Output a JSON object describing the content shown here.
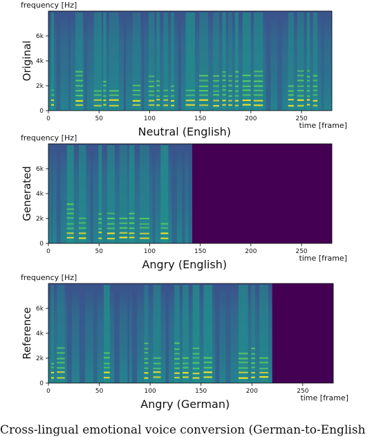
{
  "figure": {
    "caption": "Cross-lingual emotional voice conversion (German-to-English",
    "panels": [
      {
        "ylabel": "Original",
        "xlabel": "Neutral (English)",
        "freq_axis_label": "frequency [Hz]",
        "time_axis_label": "time [frame]",
        "y_ticks": [
          "0",
          "2k",
          "4k",
          "6k"
        ],
        "x_ticks": [
          "0",
          "50",
          "100",
          "150",
          "200",
          "250"
        ],
        "signal_end_frame": 280
      },
      {
        "ylabel": "Generated",
        "xlabel": "Angry (English)",
        "freq_axis_label": "frequency [Hz]",
        "time_axis_label": "time [frame]",
        "y_ticks": [
          "0",
          "2k",
          "4k",
          "6k"
        ],
        "x_ticks": [
          "0",
          "50",
          "100",
          "150",
          "200",
          "250"
        ],
        "signal_end_frame": 142
      },
      {
        "ylabel": "Reference",
        "xlabel": "Angry (German)",
        "freq_axis_label": "frequency [Hz]",
        "time_axis_label": "time [frame]",
        "y_ticks": [
          "0",
          "2k",
          "4k",
          "6k"
        ],
        "x_ticks": [
          "0",
          "50",
          "100",
          "150",
          "200",
          "250"
        ],
        "signal_end_frame": 220
      }
    ],
    "colors": {
      "background": "#440154",
      "low": "#3b528b",
      "mid": "#21918c",
      "high": "#5ec962",
      "peak": "#fde725"
    }
  }
}
